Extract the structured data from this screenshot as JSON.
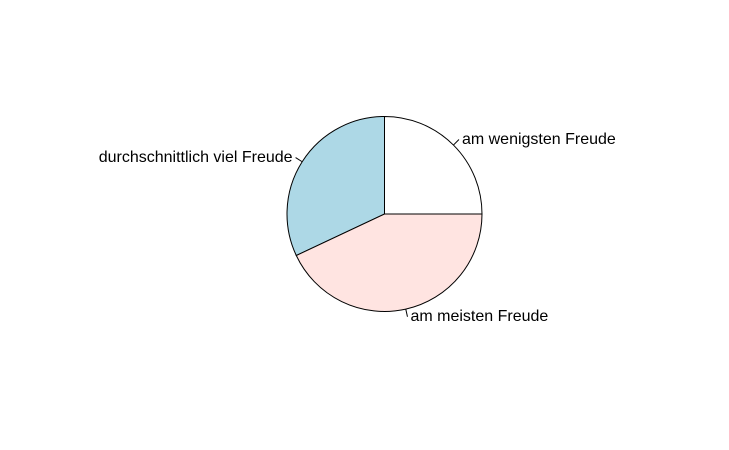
{
  "chart_data": {
    "type": "pie",
    "title": "",
    "start_angle_deg": 0,
    "direction": "counterclockwise",
    "slices": [
      {
        "label": "am wenigsten Freude",
        "value": 25,
        "color": "#ffffff"
      },
      {
        "label": "durchschnittlich viel Freude",
        "value": 32,
        "color": "#add8e6"
      },
      {
        "label": "am meisten Freude",
        "value": 43,
        "color": "#ffe4e1"
      }
    ]
  }
}
